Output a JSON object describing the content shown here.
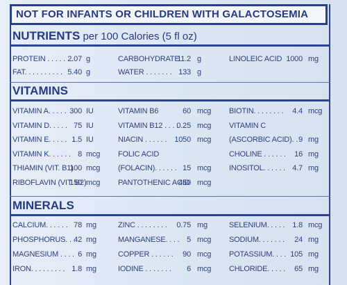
{
  "warning": "NOT FOR INFANTS OR CHILDREN WITH GALACTOSEMIA",
  "nutrients": {
    "title": "NUTRIENTS",
    "subtitle": " per 100 Calories (5 fl oz)",
    "items": [
      {
        "name": "PROTEIN . . . . . . .",
        "value": "2.07",
        "unit": "g"
      },
      {
        "name": "CARBOHYDRATE",
        "value": "11.2",
        "unit": "g"
      },
      {
        "name": "LINOLEIC ACID",
        "value": "1000",
        "unit": "mg"
      },
      {
        "name": "FAT. . . . . . . . . .",
        "value": "5.40",
        "unit": "g"
      },
      {
        "name": "WATER . . . . . . .",
        "value": "133",
        "unit": "g"
      }
    ]
  },
  "vitamins": {
    "title": "VITAMINS",
    "items": [
      {
        "name": "VITAMIN A. . . . .",
        "value": "300",
        "unit": "IU"
      },
      {
        "name": "VITAMIN B6",
        "value": "60",
        "unit": "mcg"
      },
      {
        "name": "BIOTIN. . . . . . . .",
        "value": "4.4",
        "unit": "mcg"
      },
      {
        "name": "VITAMIN D. . . . .",
        "value": "75",
        "unit": "IU"
      },
      {
        "name": "VITAMIN B12 . . . .",
        "value": "0.25",
        "unit": "mcg"
      },
      {
        "name": "VITAMIN C",
        "value": "",
        "unit": ""
      },
      {
        "name": "VITAMIN E. . . . .",
        "value": "1.5",
        "unit": "IU"
      },
      {
        "name": "NIACIN . . . . . .",
        "value": "1050",
        "unit": "mcg"
      },
      {
        "name": "(ASCORBIC ACID). .",
        "value": "9",
        "unit": "mg"
      },
      {
        "name": "VITAMIN K. . . . . .",
        "value": "8",
        "unit": "mcg"
      },
      {
        "name": "FOLIC ACID",
        "value": "",
        "unit": ""
      },
      {
        "name": "CHOLINE . . . . . .",
        "value": "16",
        "unit": "mg"
      },
      {
        "name": "THIAMIN (VIT. B1)",
        "value": "100",
        "unit": "mcg"
      },
      {
        "name": "(FOLACIN). . . . . .",
        "value": "15",
        "unit": "mcg"
      },
      {
        "name": "INOSITOL. . . . . .",
        "value": "4.7",
        "unit": "mg"
      },
      {
        "name": "RIBOFLAVIN (VIT. B2)",
        "value": "150",
        "unit": "mcg"
      },
      {
        "name": "PANTOTHENIC ACID",
        "value": "450",
        "unit": "mcg"
      }
    ]
  },
  "minerals": {
    "title": "MINERALS",
    "items": [
      {
        "name": "CALCIUM. . . . . .",
        "value": "78",
        "unit": "mg"
      },
      {
        "name": "ZINC . . . . . . . .",
        "value": "0.75",
        "unit": "mg"
      },
      {
        "name": "SELENIUM. . . . .",
        "value": "1.8",
        "unit": "mcg"
      },
      {
        "name": "PHOSPHORUS. . .",
        "value": "42",
        "unit": "mg"
      },
      {
        "name": "MANGANESE. . . .",
        "value": "5",
        "unit": "mcg"
      },
      {
        "name": "SODIUM. . . . . . .",
        "value": "24",
        "unit": "mg"
      },
      {
        "name": "MAGNESIUM . . . .",
        "value": "6",
        "unit": "mg"
      },
      {
        "name": "COPPER . . . . . .",
        "value": "90",
        "unit": "mcg"
      },
      {
        "name": "POTASSIUM. . . .",
        "value": "105",
        "unit": "mg"
      },
      {
        "name": "IRON. . . . . . . . .",
        "value": "1.8",
        "unit": "mg"
      },
      {
        "name": "IODINE . . . . . . .",
        "value": "6",
        "unit": "mcg"
      },
      {
        "name": "CHLORIDE. . . . .",
        "value": "65",
        "unit": "mg"
      }
    ]
  },
  "colors": {
    "ink": "#2b3f7c",
    "rule": "#2c4393",
    "background": "#dfe8f3"
  }
}
